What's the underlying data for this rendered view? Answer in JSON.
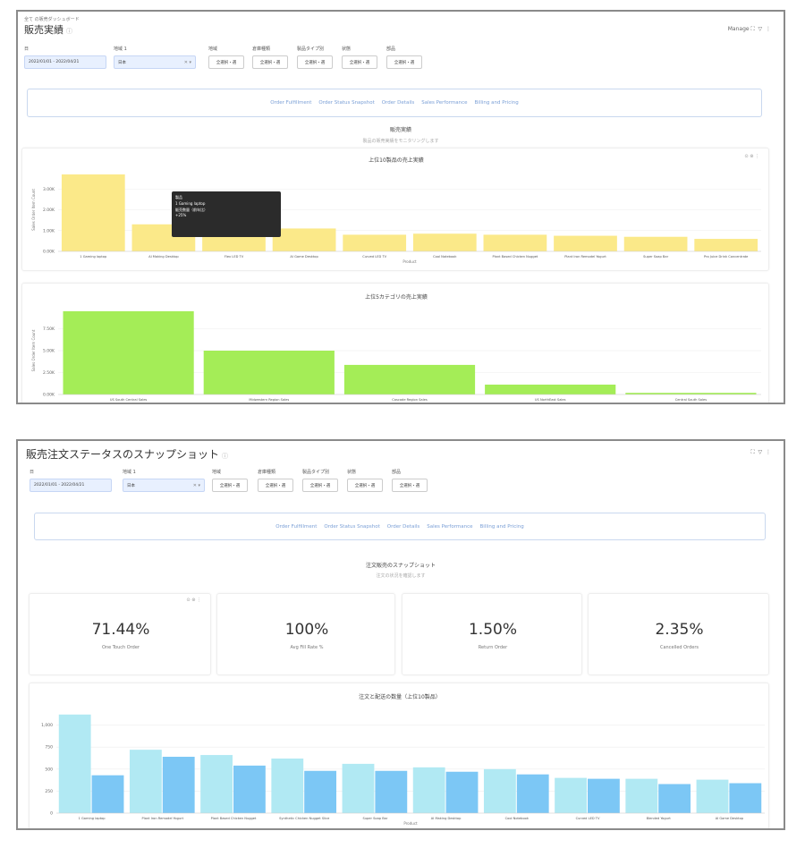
{
  "colors": {
    "yellow": "#fbe989",
    "green": "#a4ed57",
    "light_blue": "#b1e9f3",
    "blue": "#7cc7f5",
    "link": "#7a9fd6"
  },
  "common": {
    "date_label": "日",
    "region_label": "地域 1",
    "date_value": "2022/01/01 - 2022/04/21",
    "region_value": "日本",
    "other_filters": [
      "地域",
      "倉庫種類",
      "製品タイプ別",
      "状態",
      "部品"
    ],
    "other_filter_value": "全選択・選",
    "nav_links": [
      "Order Fulfillment",
      "Order Status Snapshot",
      "Order Details",
      "Sales Performance",
      "Billing and Pricing"
    ]
  },
  "s1": {
    "breadcrumb": "全て の販売ダッシュボード",
    "title": "販売実績",
    "topright": "Manage",
    "section_title": "販売実績",
    "section_sub": "製品の販売実績をモニタリングします",
    "tooltip_lines": [
      "製品",
      "1 Gaming laptop",
      "販売数量（前年比）",
      "+25%"
    ],
    "chart1": {
      "title": "上位10製品の売上実績",
      "xlabel": "Product",
      "ylabel": "Sales Order Item Count"
    },
    "chart2": {
      "title": "上位5カテゴリの売上実績",
      "xlabel": "Sales Org",
      "ylabel": "Sales Order Item Count"
    }
  },
  "s2": {
    "title": "販売注文ステータスのスナップショット",
    "section_title": "注文販売のスナップショット",
    "section_sub": "注文の状況を確認します",
    "kpis": [
      {
        "value": "71.44%",
        "label": "One Touch Order"
      },
      {
        "value": "100%",
        "label": "Avg Fill Rate %"
      },
      {
        "value": "1.50%",
        "label": "Return Order"
      },
      {
        "value": "2.35%",
        "label": "Cancelled Orders"
      }
    ],
    "chart3": {
      "title": "注文と配送の数量（上位10製品）",
      "xlabel": "Product"
    }
  },
  "chart_data": [
    {
      "type": "bar",
      "title": "上位10製品の売上実績",
      "xlabel": "Product",
      "ylabel": "Sales Order Item Count",
      "categories": [
        "1 Gaming laptop",
        "AI Making Desktop",
        "Flex LED TV",
        "AI Game Desktop",
        "Curved LED TV",
        "Cool Notebook",
        "Plant Based Chicken Nugget",
        "Plant Iron Remodel Yogurt",
        "Super Soap Bar",
        "Pro Juice Drink Concentrate"
      ],
      "values": [
        3700,
        1300,
        1200,
        1100,
        800,
        850,
        800,
        750,
        700,
        600
      ],
      "ylim": [
        0,
        4000
      ],
      "yticks": [
        "0.00K",
        "1.00K",
        "2.00K",
        "3.00K"
      ],
      "color": "#fbe989"
    },
    {
      "type": "bar",
      "title": "上位5カテゴリの売上実績",
      "xlabel": "Sales Org",
      "ylabel": "Sales Order Item Count",
      "categories": [
        "US South Central Sales",
        "Midwestern Region Sales",
        "Cascade Region Sales",
        "US NorthEast Sales",
        "Central South Sales"
      ],
      "values": [
        7600,
        4000,
        2700,
        900,
        150
      ],
      "ylim": [
        0,
        8000
      ],
      "yticks": [
        "0.00K",
        "2.50K",
        "5.00K",
        "7.50K"
      ],
      "color": "#a4ed57"
    },
    {
      "type": "bar",
      "title": "注文と配送の数量（上位10製品）",
      "xlabel": "Product",
      "categories": [
        "1 Gaming laptop",
        "Plant Iron Remodel Yogurt",
        "Plant Based Chicken Nugget",
        "Synthetic Chicken Nugget Slice",
        "Super Soap Bar",
        "AI Making Desktop",
        "Cool Notebook",
        "Curved LED TV",
        "Blended Yogurt",
        "AI Game Desktop"
      ],
      "series": [
        {
          "values": [
            1120,
            720,
            660,
            620,
            560,
            520,
            500,
            400,
            390,
            380
          ],
          "color": "#b1e9f3"
        },
        {
          "values": [
            430,
            640,
            540,
            480,
            480,
            470,
            440,
            390,
            330,
            340
          ],
          "color": "#7cc7f5"
        }
      ],
      "ylim": [
        0,
        1250
      ],
      "yticks": [
        "0",
        "250",
        "500",
        "750",
        "1,000"
      ]
    }
  ]
}
